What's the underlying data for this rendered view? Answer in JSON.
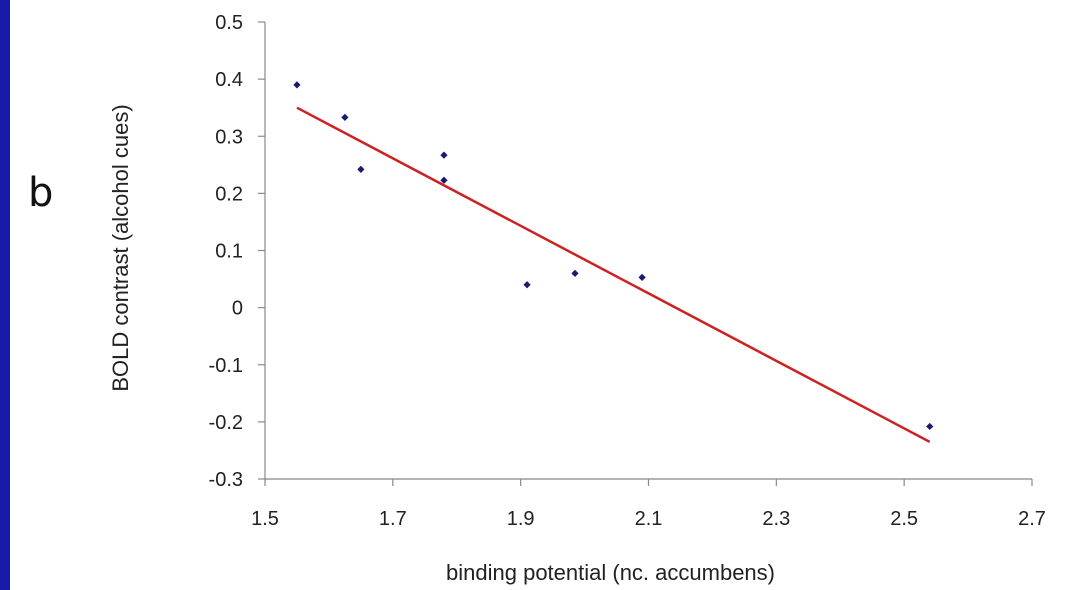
{
  "panel_label": "b",
  "colors": {
    "side_bar": "#1a1aa8",
    "points": "#1a1a6e",
    "trend_line": "#cc2222",
    "axis": "#888888",
    "text": "#222222"
  },
  "chart_data": {
    "type": "scatter",
    "title": "",
    "xlabel": "binding potential (nc. accumbens)",
    "ylabel": "BOLD contrast (alcohol cues)",
    "xlim": [
      1.5,
      2.7
    ],
    "ylim": [
      -0.3,
      0.5
    ],
    "xticks": [
      1.5,
      1.7,
      1.9,
      2.1,
      2.3,
      2.5,
      2.7
    ],
    "xtick_labels": [
      "1.5",
      "1.7",
      "1.9",
      "2.1",
      "2.3",
      "2.5",
      "2.7"
    ],
    "yticks": [
      0.5,
      0.4,
      0.3,
      0.2,
      0.1,
      0,
      -0.1,
      -0.2,
      -0.3
    ],
    "ytick_labels": [
      "0.5",
      "0.4",
      "0.3",
      "0.2",
      "0.1",
      "0",
      "-0.1",
      "-0.2",
      "-0.3"
    ],
    "grid": false,
    "legend": "none",
    "points": [
      {
        "x": 1.55,
        "y": 0.39
      },
      {
        "x": 1.625,
        "y": 0.333
      },
      {
        "x": 1.65,
        "y": 0.242
      },
      {
        "x": 1.78,
        "y": 0.267
      },
      {
        "x": 1.78,
        "y": 0.223
      },
      {
        "x": 1.91,
        "y": 0.04
      },
      {
        "x": 1.985,
        "y": 0.06
      },
      {
        "x": 2.09,
        "y": 0.053
      },
      {
        "x": 2.54,
        "y": -0.208
      }
    ],
    "trend_line": {
      "x": [
        1.55,
        2.54
      ],
      "y": [
        0.35,
        -0.235
      ]
    }
  }
}
